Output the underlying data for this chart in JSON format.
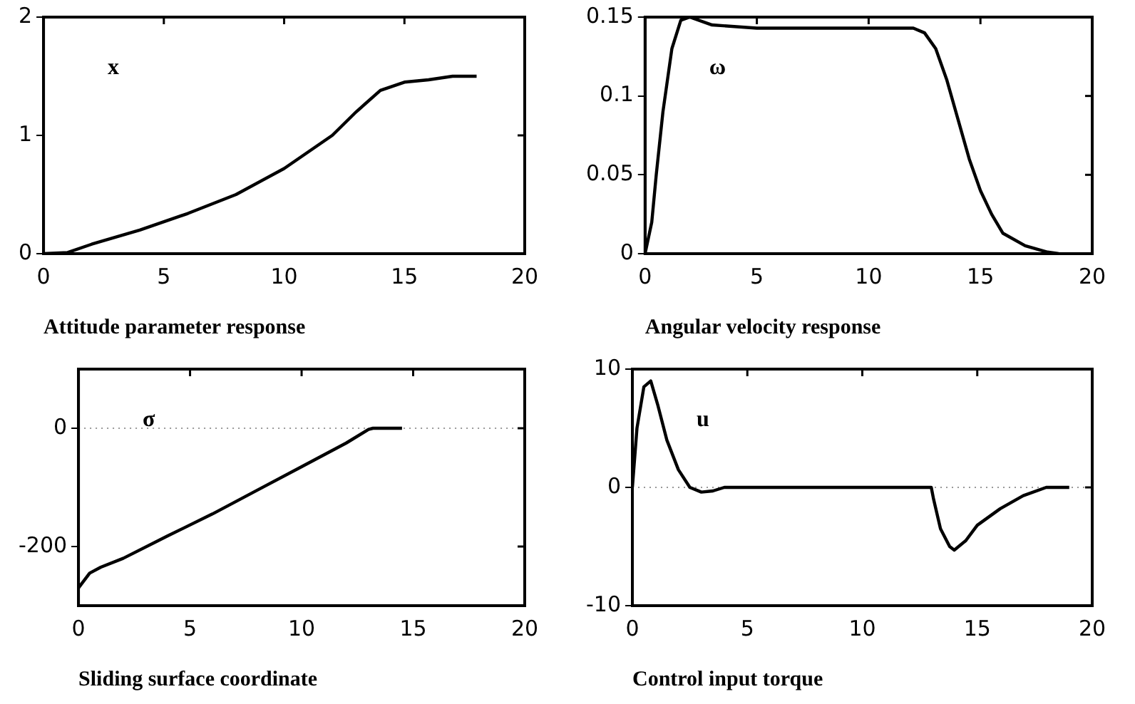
{
  "chart_data": [
    {
      "type": "line",
      "xlabel": "Attitude parameter response",
      "annotations": [
        "x"
      ],
      "marker": "none",
      "xlim": [
        0,
        20
      ],
      "xticks": [
        0,
        5,
        10,
        15,
        20
      ],
      "ylim": [
        0,
        2
      ],
      "yticks": [
        0,
        1,
        2
      ],
      "x": [
        0,
        1,
        2,
        4,
        6,
        8,
        10,
        12,
        13,
        14,
        15,
        16,
        17,
        18
      ],
      "series": [
        {
          "color": "#000000",
          "values": [
            0,
            0.01,
            0.08,
            0.2,
            0.34,
            0.5,
            0.72,
            1.0,
            1.2,
            1.38,
            1.45,
            1.47,
            1.5,
            1.5
          ]
        }
      ]
    },
    {
      "type": "line",
      "xlabel": "Angular velocity response",
      "annotations": [
        "ω"
      ],
      "marker": "none",
      "xlim": [
        0,
        20
      ],
      "xticks": [
        0,
        5,
        10,
        15,
        20
      ],
      "ylim": [
        0,
        0.15
      ],
      "yticks": [
        0,
        0.05,
        0.1,
        0.15
      ],
      "x": [
        0,
        0.3,
        0.5,
        0.8,
        1.2,
        1.6,
        2,
        3,
        5,
        7,
        10,
        12,
        12.5,
        13,
        13.5,
        14,
        14.5,
        15,
        15.5,
        16,
        17,
        18,
        18.5
      ],
      "series": [
        {
          "color": "#000000",
          "values": [
            0,
            0.02,
            0.05,
            0.09,
            0.13,
            0.148,
            0.15,
            0.145,
            0.143,
            0.143,
            0.143,
            0.143,
            0.14,
            0.13,
            0.11,
            0.085,
            0.06,
            0.04,
            0.025,
            0.013,
            0.005,
            0.001,
            0
          ]
        }
      ]
    },
    {
      "type": "line",
      "xlabel": "Sliding surface coordinate",
      "annotations": [
        "σ"
      ],
      "marker": "none",
      "xlim": [
        0,
        20
      ],
      "xticks": [
        0,
        5,
        10,
        15,
        20
      ],
      "ylim": [
        -300,
        100
      ],
      "yticks": [
        -200,
        0
      ],
      "ref_lines": [
        {
          "axis": "y",
          "value": 0,
          "line_style": "dotted",
          "color": "#999999"
        }
      ],
      "x": [
        0,
        0.5,
        1,
        2,
        4,
        6,
        8,
        10,
        12,
        13,
        13.2,
        14.5
      ],
      "series": [
        {
          "color": "#000000",
          "values": [
            -270,
            -245,
            -235,
            -220,
            -182,
            -145,
            -105,
            -65,
            -25,
            -2,
            0,
            0
          ]
        }
      ]
    },
    {
      "type": "line",
      "xlabel": "Control input torque",
      "annotations": [
        "u"
      ],
      "marker": "none",
      "xlim": [
        0,
        20
      ],
      "xticks": [
        0,
        5,
        10,
        15,
        20
      ],
      "ylim": [
        -10,
        10
      ],
      "yticks": [
        -10,
        0,
        10
      ],
      "ref_lines": [
        {
          "axis": "y",
          "value": 0,
          "line_style": "dotted",
          "color": "#999999"
        }
      ],
      "x": [
        0,
        0.2,
        0.5,
        0.8,
        1.1,
        1.5,
        2,
        2.5,
        3,
        3.5,
        4,
        5,
        13,
        13.1,
        13.4,
        13.8,
        14,
        14.5,
        15,
        16,
        17,
        18,
        19
      ],
      "series": [
        {
          "color": "#000000",
          "values": [
            0,
            5,
            8.5,
            9,
            7,
            4,
            1.5,
            0,
            -0.4,
            -0.3,
            0,
            0,
            0,
            -1,
            -3.5,
            -5,
            -5.3,
            -4.5,
            -3.2,
            -1.8,
            -0.7,
            0,
            0
          ]
        }
      ]
    }
  ]
}
